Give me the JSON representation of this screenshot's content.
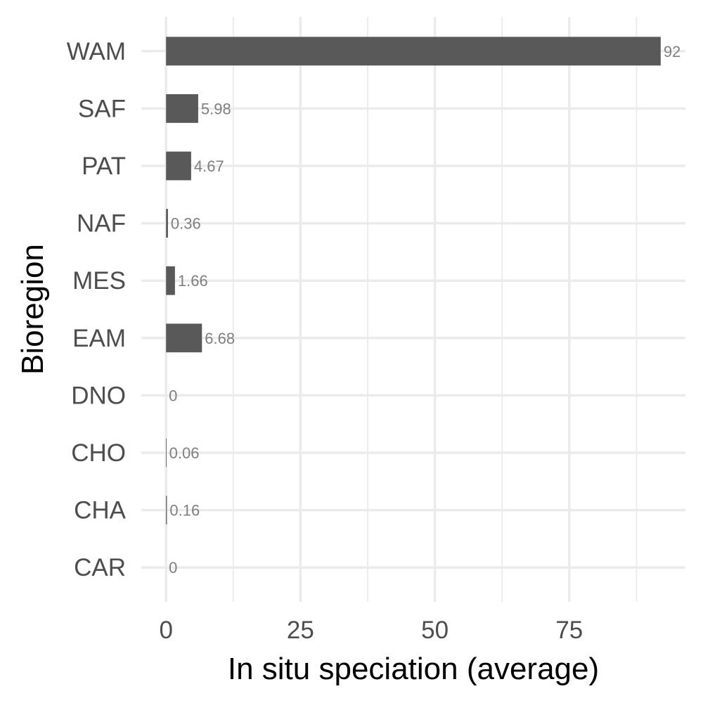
{
  "chart_data": {
    "type": "bar",
    "orientation": "horizontal",
    "categories": [
      "CAR",
      "CHA",
      "CHO",
      "DNO",
      "EAM",
      "MES",
      "NAF",
      "PAT",
      "SAF",
      "WAM"
    ],
    "values": [
      0,
      0.16,
      0.06,
      0,
      6.68,
      1.66,
      0.36,
      4.67,
      5.98,
      92
    ],
    "data_labels": [
      "0",
      "0.16",
      "0.06",
      "0",
      "6.68",
      "1.66",
      "0.36",
      "4.67",
      "5.98",
      "92"
    ],
    "xlabel": "In situ speciation (average)",
    "ylabel": "Bioregion",
    "x_ticks": [
      0,
      25,
      50,
      75
    ],
    "x_tick_labels": [
      "0",
      "25",
      "50",
      "75"
    ],
    "xlim": [
      -4.6,
      96.6
    ],
    "grid": true,
    "legend": "none",
    "colors": {
      "bar": "#595959",
      "grid": "#ebebeb",
      "label": "#7f7f7f",
      "tick": "#4d4d4d"
    }
  }
}
